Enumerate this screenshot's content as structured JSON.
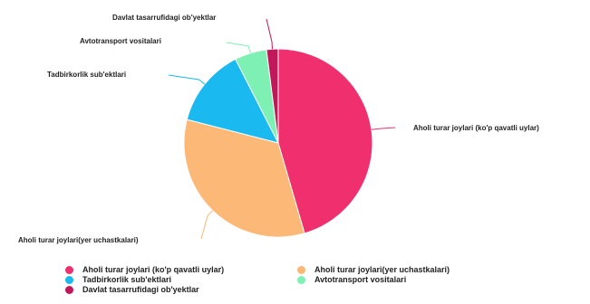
{
  "chart_data": {
    "type": "pie",
    "categories": [
      "Aholi turar joylari (ko'p qavatli uylar)",
      "Aholi turar joylari(yer uchastkalari)",
      "Tadbirkorlik sub'ektlari",
      "Avtotransport vositalari",
      "Davlat tasarrufidagi ob'yektlar"
    ],
    "values": [
      45.5,
      33.5,
      13.5,
      5.5,
      2.0
    ],
    "colors": [
      "#f0306e",
      "#fbb877",
      "#1ab9ef",
      "#7ff0b4",
      "#c2185b"
    ],
    "legend_position": "bottom",
    "title": ""
  }
}
